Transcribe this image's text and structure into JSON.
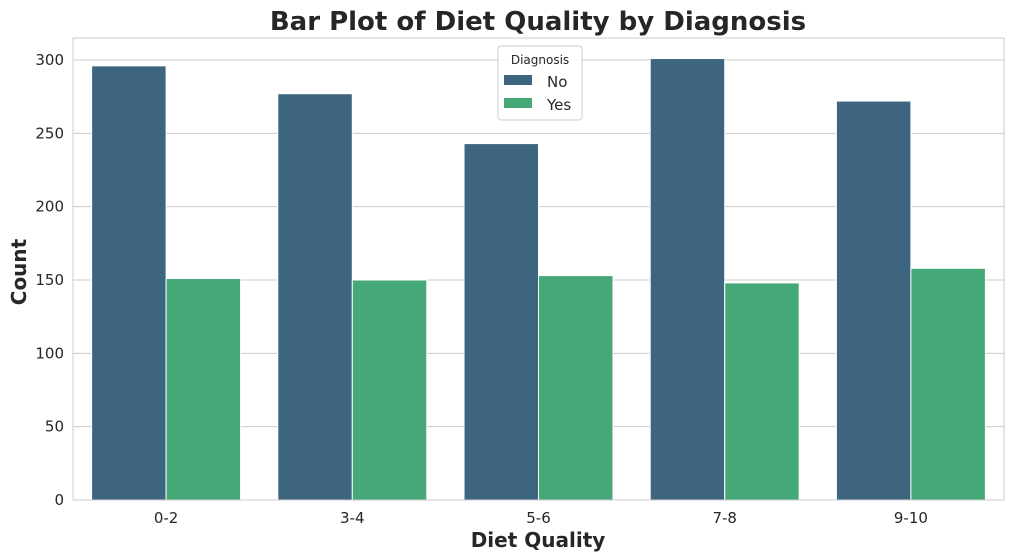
{
  "chart_data": {
    "type": "bar",
    "title": "Bar Plot of Diet Quality by Diagnosis",
    "xlabel": "Diet Quality",
    "ylabel": "Count",
    "categories": [
      "0-2",
      "3-4",
      "5-6",
      "7-8",
      "9-10"
    ],
    "series": [
      {
        "name": "No",
        "values": [
          296,
          277,
          243,
          301,
          272
        ],
        "color": "#3e6580"
      },
      {
        "name": "Yes",
        "values": [
          151,
          150,
          153,
          148,
          158
        ],
        "color": "#45a877"
      }
    ],
    "ylim": [
      0,
      315
    ],
    "yticks": [
      0,
      50,
      100,
      150,
      200,
      250,
      300
    ],
    "grid": "horizontal",
    "legend": {
      "title": "Diagnosis",
      "placement": "top-center"
    }
  }
}
